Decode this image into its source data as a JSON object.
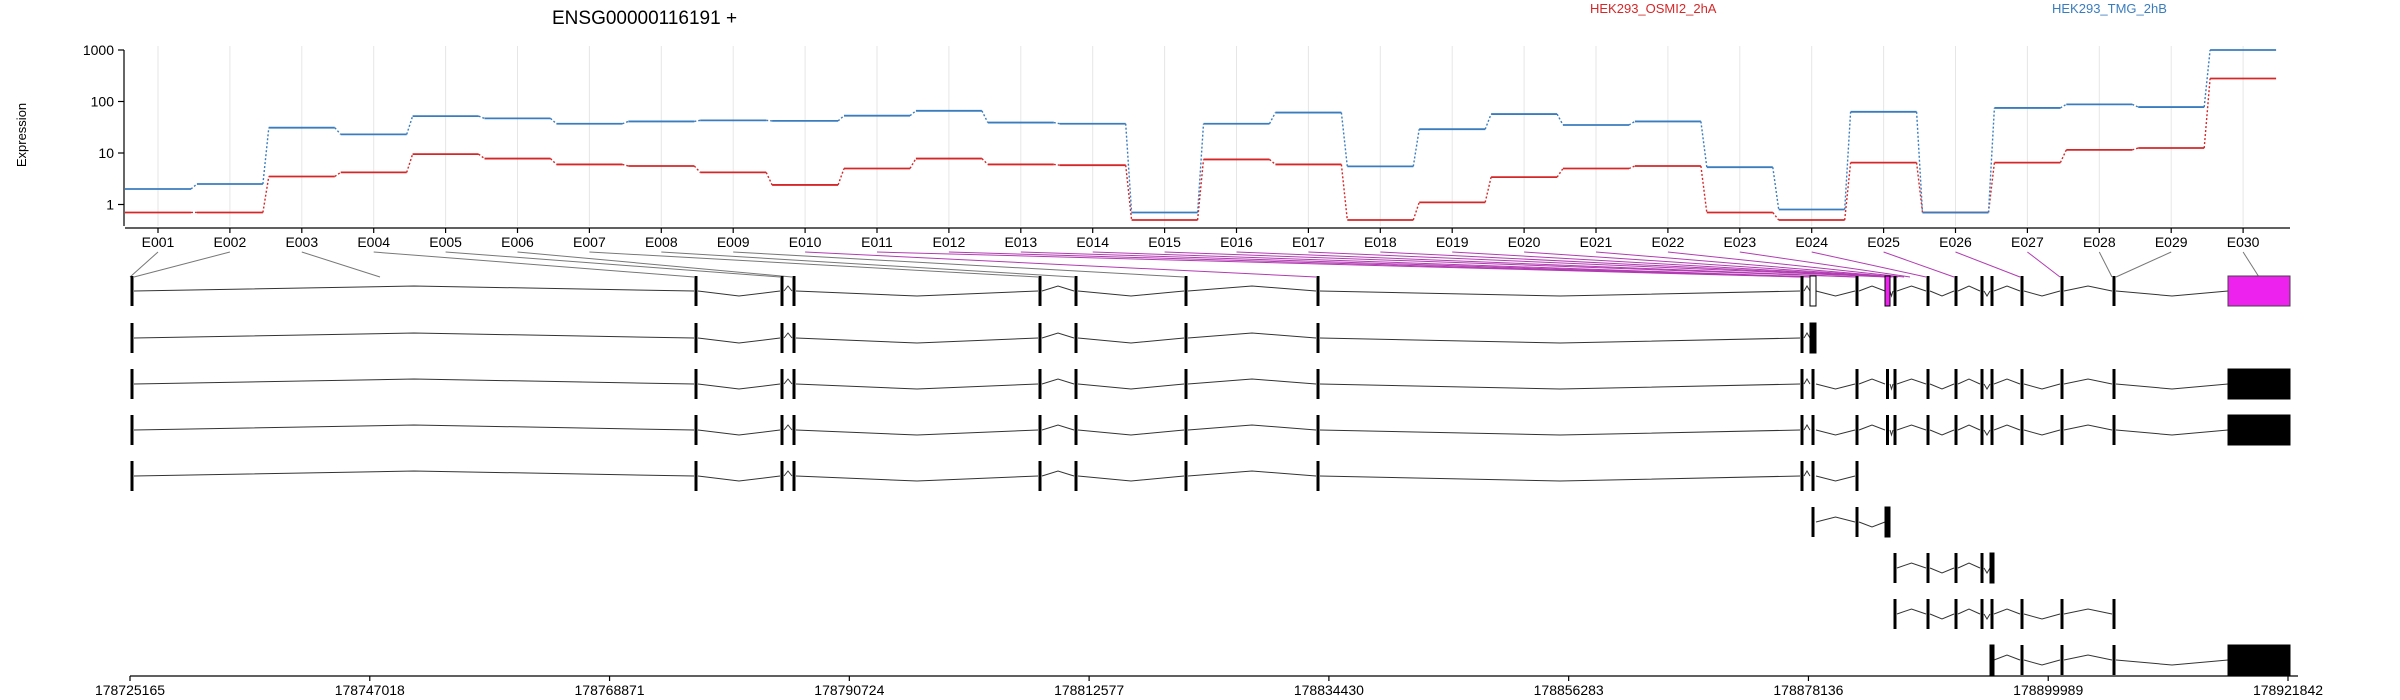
{
  "header": {
    "gene_title": "ENSG00000116191 +"
  },
  "legend": [
    {
      "label": "HEK293_OSMI2_2hA",
      "color": "#d62728"
    },
    {
      "label": "HEK293_TMG_2hB",
      "color": "#3a7dbf"
    }
  ],
  "chart_data": {
    "type": "line",
    "title": "ENSG00000116191 +",
    "ylabel": "Expression",
    "yscale": "log",
    "ylim": [
      0.5,
      1000
    ],
    "yticks": [
      1,
      10,
      100,
      1000
    ],
    "yticklabels": [
      "1",
      "10",
      "100",
      "1000"
    ],
    "grid": "vertical",
    "legend_position": "top",
    "categories": [
      "E001",
      "E002",
      "E003",
      "E004",
      "E005",
      "E006",
      "E007",
      "E008",
      "E009",
      "E010",
      "E011",
      "E012",
      "E013",
      "E014",
      "E015",
      "E016",
      "E017",
      "E018",
      "E019",
      "E020",
      "E021",
      "E022",
      "E023",
      "E024",
      "E025",
      "E026",
      "E027",
      "E028",
      "E029",
      "E030"
    ],
    "series": [
      {
        "name": "HEK293_OSMI2_2hA",
        "color": "#d62728",
        "values": [
          0.7,
          0.7,
          3.5,
          4.2,
          9.5,
          7.8,
          6.0,
          5.6,
          4.2,
          2.4,
          5.0,
          7.8,
          6.0,
          5.8,
          0.5,
          7.5,
          6.0,
          0.5,
          1.1,
          3.4,
          5.0,
          5.6,
          0.7,
          0.5,
          6.5,
          0.7,
          6.5,
          11.5,
          12.5,
          280
        ]
      },
      {
        "name": "HEK293_TMG_2hB",
        "color": "#3a7dbf",
        "values": [
          2.0,
          2.5,
          31,
          23,
          52,
          47,
          37,
          41,
          43,
          42,
          53,
          66,
          39,
          37,
          0.7,
          37,
          61,
          5.5,
          29,
          57,
          35,
          41,
          5.3,
          0.8,
          63,
          0.7,
          75,
          88,
          78,
          1000
        ]
      }
    ],
    "genomic_axis": {
      "ticks": [
        "178725165",
        "178747018",
        "178768871",
        "178790724",
        "178812577",
        "178834430",
        "178856283",
        "178878136",
        "178899989",
        "178921842"
      ]
    }
  }
}
